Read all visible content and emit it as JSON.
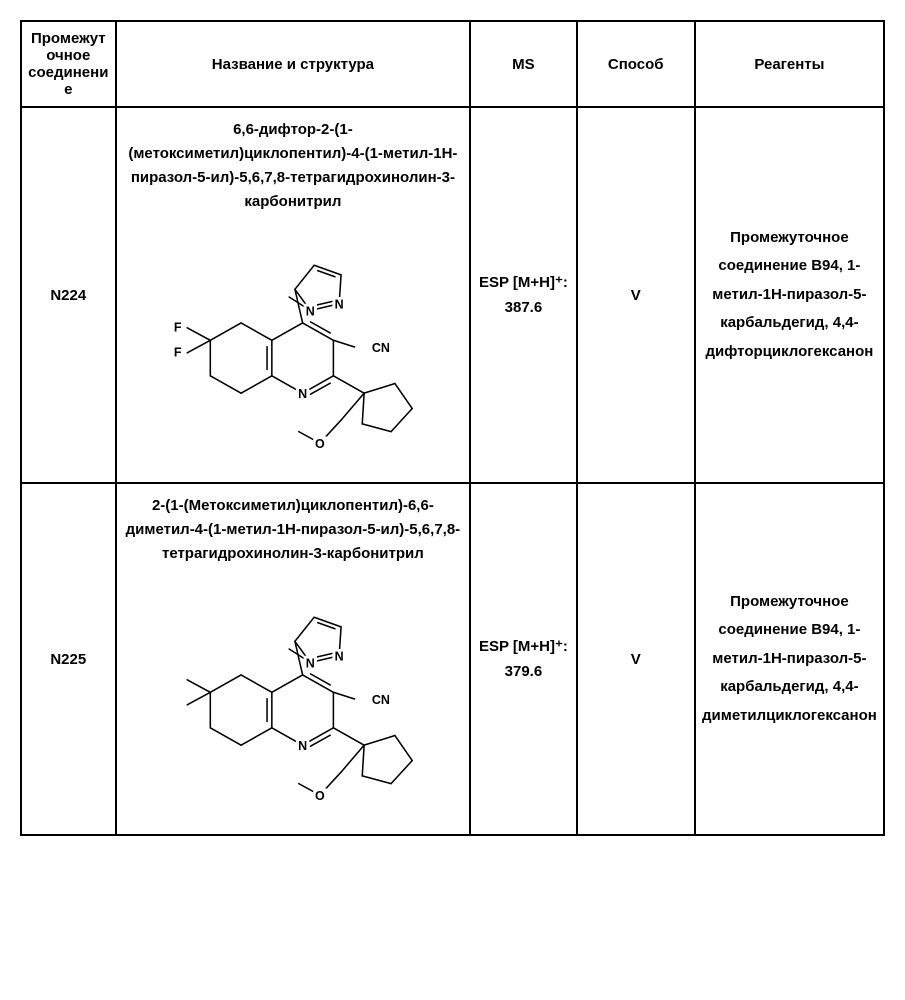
{
  "table": {
    "headers": {
      "id": "Промежуточное соединение",
      "name": "Название и структура",
      "ms": "MS",
      "method": "Способ",
      "reagents": "Реагенты"
    },
    "rows": [
      {
        "id": "N224",
        "compound_name": "6,6-дифтор-2-(1-(метоксиметил)циклопентил)-4-(1-метил-1Н-пиразол-5-ил)-5,6,7,8-тетрагидрохинолин-3-карбонитрил",
        "ms": "ESP [M+H]⁺: 387.6",
        "method": "V",
        "reagents": "Промежуточное соединение B94, 1-метил-1Н-пиразол-5-карбальдегид, 4,4-дифторциклогексанон",
        "substituents": {
          "r1": "F",
          "r2": "F"
        }
      },
      {
        "id": "N225",
        "compound_name": "2-(1-(Метоксиметил)циклопентил)-6,6-диметил-4-(1-метил-1Н-пиразол-5-ил)-5,6,7,8-тетрагидрохинолин-3-карбонитрил",
        "ms": "ESP [M+H]⁺: 379.6",
        "method": "V",
        "reagents": "Промежуточное соединение B94, 1-метил-1Н-пиразол-5-карбальдегид, 4,4-диметилциклогексанон",
        "substituents": {
          "r1": "",
          "r2": ""
        }
      }
    ]
  },
  "style": {
    "stroke": "#000000",
    "stroke_width": 1.6,
    "font": "Arial",
    "atom_fontsize": 13
  }
}
